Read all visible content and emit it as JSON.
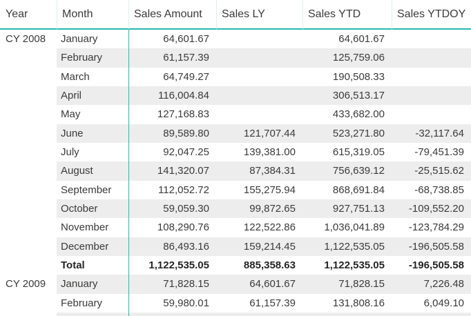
{
  "colors": {
    "accent": "#28B9AE",
    "header-separator": "#DCEFED",
    "row-band": "#EDEDED",
    "text": "#3B3A39",
    "text-strong": "#252423",
    "background": "#FFFFFF"
  },
  "chart_data": {
    "type": "table",
    "columns": [
      "Year",
      "Month",
      "Sales Amount",
      "Sales LY",
      "Sales YTD",
      "Sales YTDOY"
    ],
    "total_label": "Total",
    "rows": [
      {
        "year": "CY 2008",
        "month": "January",
        "sales_amount": "64,601.67",
        "sales_ly": "",
        "sales_ytd": "64,601.67",
        "sales_ytdoy": ""
      },
      {
        "year": "",
        "month": "February",
        "sales_amount": "61,157.39",
        "sales_ly": "",
        "sales_ytd": "125,759.06",
        "sales_ytdoy": ""
      },
      {
        "year": "",
        "month": "March",
        "sales_amount": "64,749.27",
        "sales_ly": "",
        "sales_ytd": "190,508.33",
        "sales_ytdoy": ""
      },
      {
        "year": "",
        "month": "April",
        "sales_amount": "116,004.84",
        "sales_ly": "",
        "sales_ytd": "306,513.17",
        "sales_ytdoy": ""
      },
      {
        "year": "",
        "month": "May",
        "sales_amount": "127,168.83",
        "sales_ly": "",
        "sales_ytd": "433,682.00",
        "sales_ytdoy": ""
      },
      {
        "year": "",
        "month": "June",
        "sales_amount": "89,589.80",
        "sales_ly": "121,707.44",
        "sales_ytd": "523,271.80",
        "sales_ytdoy": "-32,117.64"
      },
      {
        "year": "",
        "month": "July",
        "sales_amount": "92,047.25",
        "sales_ly": "139,381.00",
        "sales_ytd": "615,319.05",
        "sales_ytdoy": "-79,451.39"
      },
      {
        "year": "",
        "month": "August",
        "sales_amount": "141,320.07",
        "sales_ly": "87,384.31",
        "sales_ytd": "756,639.12",
        "sales_ytdoy": "-25,515.62"
      },
      {
        "year": "",
        "month": "September",
        "sales_amount": "112,052.72",
        "sales_ly": "155,275.94",
        "sales_ytd": "868,691.84",
        "sales_ytdoy": "-68,738.85"
      },
      {
        "year": "",
        "month": "October",
        "sales_amount": "59,059.30",
        "sales_ly": "99,872.65",
        "sales_ytd": "927,751.13",
        "sales_ytdoy": "-109,552.20"
      },
      {
        "year": "",
        "month": "November",
        "sales_amount": "108,290.76",
        "sales_ly": "122,522.86",
        "sales_ytd": "1,036,041.89",
        "sales_ytdoy": "-123,784.29"
      },
      {
        "year": "",
        "month": "December",
        "sales_amount": "86,493.16",
        "sales_ly": "159,214.45",
        "sales_ytd": "1,122,535.05",
        "sales_ytdoy": "-196,505.58"
      },
      {
        "year": "",
        "month": "Total",
        "sales_amount": "1,122,535.05",
        "sales_ly": "885,358.63",
        "sales_ytd": "1,122,535.05",
        "sales_ytdoy": "-196,505.58"
      },
      {
        "year": "CY 2009",
        "month": "January",
        "sales_amount": "71,828.15",
        "sales_ly": "64,601.67",
        "sales_ytd": "71,828.15",
        "sales_ytdoy": "7,226.48"
      },
      {
        "year": "",
        "month": "February",
        "sales_amount": "59,980.01",
        "sales_ly": "61,157.39",
        "sales_ytd": "131,808.16",
        "sales_ytdoy": "6,049.10"
      },
      {
        "year": "",
        "month": "",
        "sales_amount": "",
        "sales_ly": "",
        "sales_ytd": "",
        "sales_ytdoy": ""
      }
    ]
  }
}
